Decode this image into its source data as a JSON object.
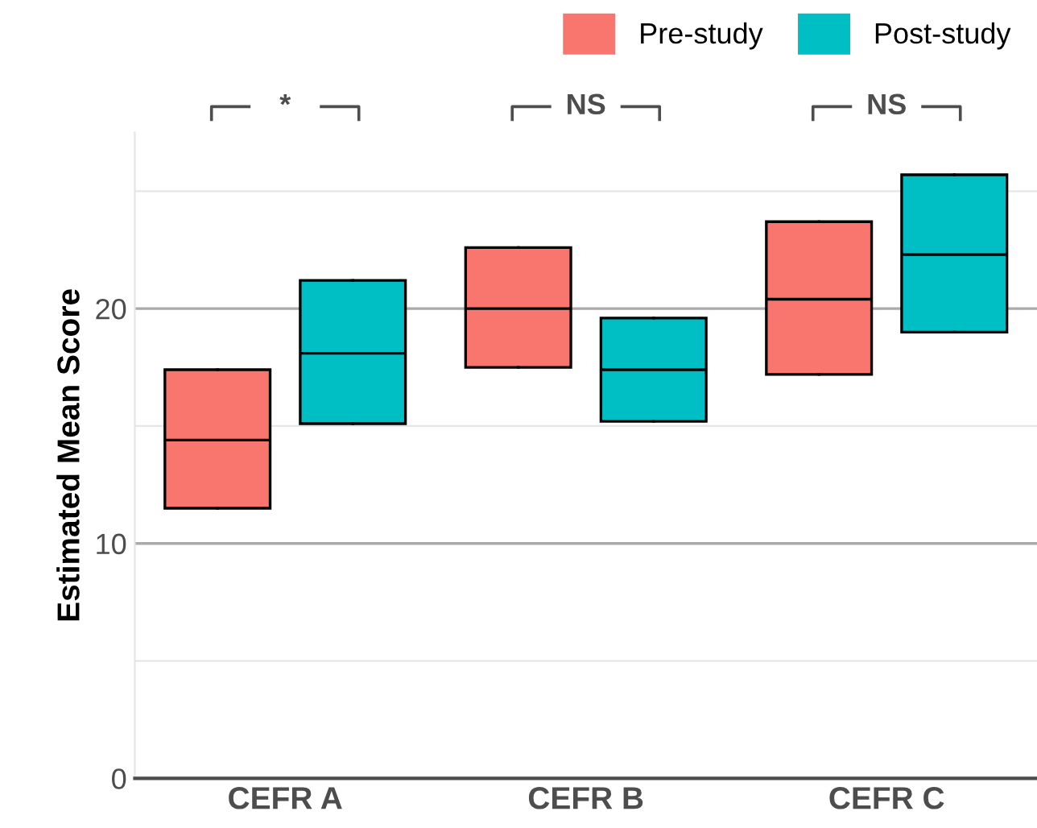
{
  "chart_data": {
    "type": "box",
    "ylabel": "Estimated Mean Score",
    "categories": [
      "CEFR A",
      "CEFR B",
      "CEFR C"
    ],
    "series": [
      {
        "name": "Pre-study",
        "color": "#f8766d",
        "boxes": [
          {
            "low": 11.5,
            "q1": 11.5,
            "median": 14.4,
            "q3": 17.4,
            "high": 17.4
          },
          {
            "low": 17.5,
            "q1": 17.5,
            "median": 20.0,
            "q3": 22.6,
            "high": 22.6
          },
          {
            "low": 17.2,
            "q1": 17.2,
            "median": 20.4,
            "q3": 23.7,
            "high": 23.7
          }
        ]
      },
      {
        "name": "Post-study",
        "color": "#00bfc4",
        "boxes": [
          {
            "low": 15.1,
            "q1": 15.1,
            "median": 18.1,
            "q3": 21.2,
            "high": 21.2
          },
          {
            "low": 15.2,
            "q1": 15.2,
            "median": 17.4,
            "q3": 19.6,
            "high": 19.6
          },
          {
            "low": 19.0,
            "q1": 19.0,
            "median": 22.3,
            "q3": 25.7,
            "high": 25.7
          }
        ]
      }
    ],
    "yticks": [
      0,
      {
        "value": 5,
        "label": null
      },
      10,
      {
        "value": 15,
        "label": null
      },
      20,
      {
        "value": 25,
        "label": null
      }
    ],
    "ylim": [
      0,
      27.5
    ],
    "grid": "y",
    "legend": "top",
    "annotations": [
      "*",
      "NS",
      "NS"
    ]
  }
}
